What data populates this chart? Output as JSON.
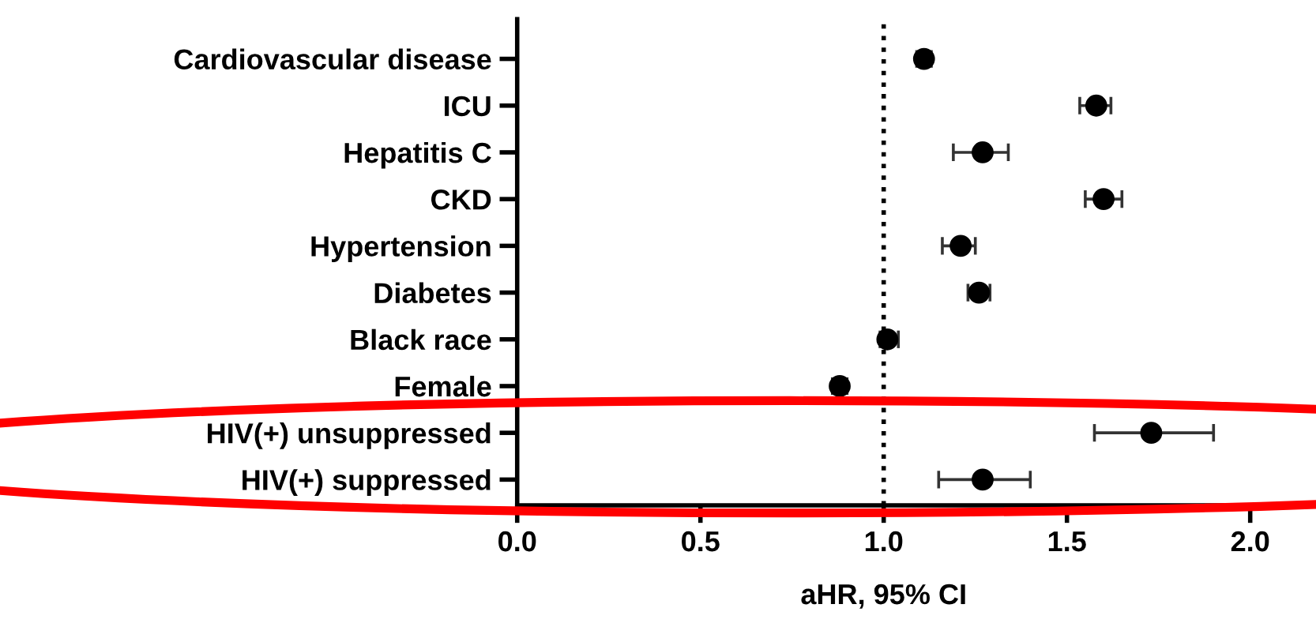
{
  "chart_data": {
    "type": "scatter",
    "orientation": "horizontal",
    "xlabel": "aHR, 95% CI",
    "categories": [
      "Cardiovascular disease",
      "ICU",
      "Hepatitis C",
      "CKD",
      "Hypertension",
      "Diabetes",
      "Black race",
      "Female",
      "HIV(+) unsuppressed",
      "HIV(+) suppressed"
    ],
    "series": [
      {
        "color": "#000000",
        "values": [
          1.11,
          1.58,
          1.27,
          1.6,
          1.21,
          1.26,
          1.01,
          0.88,
          1.73,
          1.27
        ],
        "errors": [
          [
            1.09,
            1.13
          ],
          [
            1.535,
            1.62
          ],
          [
            1.19,
            1.34
          ],
          [
            1.55,
            1.65
          ],
          [
            1.16,
            1.25
          ],
          [
            1.23,
            1.29
          ],
          [
            0.99,
            1.04
          ],
          [
            0.86,
            0.9
          ],
          [
            1.575,
            1.9
          ],
          [
            1.15,
            1.4
          ]
        ]
      }
    ],
    "xlim": [
      0,
      2
    ],
    "xticks": [
      {
        "value": 0,
        "label": "0.0"
      },
      {
        "value": 0.5,
        "label": "0.5"
      },
      {
        "value": 1,
        "label": "1.0"
      },
      {
        "value": 1.5,
        "label": "1.5"
      },
      {
        "value": 2,
        "label": "2.0"
      }
    ],
    "ref_lines": [
      {
        "axis": "x",
        "value": 1,
        "color": "#000000",
        "line_style": "dotted"
      }
    ],
    "marker": "circle",
    "grid": false,
    "legend": false
  }
}
